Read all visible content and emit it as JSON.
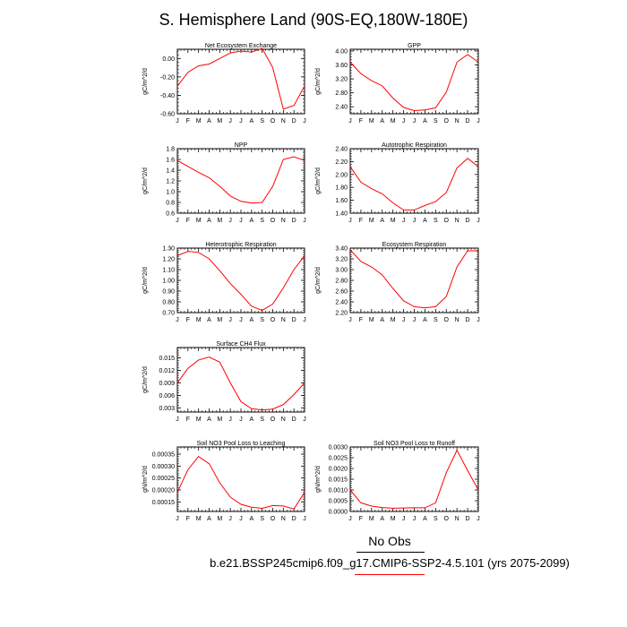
{
  "title": "S. Hemisphere Land (90S-EQ,180W-180E)",
  "legend": {
    "label": "No Obs",
    "case": "b.e21.BSSP245cmip6.f09_g17.CMIP6-SSP2-4.5.101 (yrs 2075-2099)",
    "line_color": "#ff0000"
  },
  "chart_data": [
    {
      "type": "line",
      "title": "Net Ecosystem Exchange",
      "ylabel": "gC/m^2/d",
      "x": [
        "J",
        "F",
        "M",
        "A",
        "M",
        "J",
        "J",
        "A",
        "S",
        "O",
        "N",
        "D",
        "J"
      ],
      "series": [
        {
          "values": [
            -0.3,
            -0.15,
            -0.08,
            -0.06,
            0.0,
            0.06,
            0.08,
            0.07,
            0.11,
            -0.1,
            -0.55,
            -0.51,
            -0.3
          ]
        }
      ],
      "ylim": [
        -0.6,
        0.1
      ],
      "yticks": [
        0.0,
        -0.2,
        -0.4,
        -0.6
      ],
      "ytick_labels": [
        "0.00",
        "-0.20",
        "-0.40",
        "-0.60"
      ],
      "color": "#ff0000"
    },
    {
      "type": "line",
      "title": "GPP",
      "ylabel": "gC/m^2/d",
      "x": [
        "J",
        "F",
        "M",
        "A",
        "M",
        "J",
        "J",
        "A",
        "S",
        "O",
        "N",
        "D",
        "J"
      ],
      "series": [
        {
          "values": [
            3.68,
            3.35,
            3.15,
            3.0,
            2.65,
            2.38,
            2.29,
            2.31,
            2.37,
            2.82,
            3.68,
            3.9,
            3.68
          ]
        }
      ],
      "ylim": [
        2.2,
        4.05
      ],
      "yticks": [
        2.4,
        2.8,
        3.2,
        3.6,
        4.0
      ],
      "ytick_labels": [
        "2.40",
        "2.80",
        "3.20",
        "3.60",
        "4.00"
      ],
      "color": "#ff0000"
    },
    {
      "type": "line",
      "title": "NPP",
      "ylabel": "gC/m^2/d",
      "x": [
        "J",
        "F",
        "M",
        "A",
        "M",
        "J",
        "J",
        "A",
        "S",
        "O",
        "N",
        "D",
        "J"
      ],
      "series": [
        {
          "values": [
            1.58,
            1.47,
            1.36,
            1.26,
            1.1,
            0.92,
            0.82,
            0.79,
            0.8,
            1.1,
            1.6,
            1.65,
            1.58
          ]
        }
      ],
      "ylim": [
        0.6,
        1.8
      ],
      "yticks": [
        0.6,
        0.8,
        1.0,
        1.2,
        1.4,
        1.6,
        1.8
      ],
      "ytick_labels": [
        "0.6",
        "0.8",
        "1.0",
        "1.2",
        "1.4",
        "1.6",
        "1.8"
      ],
      "color": "#ff0000"
    },
    {
      "type": "line",
      "title": "Autotrophic Respiration",
      "ylabel": "gC/m^2/d",
      "x": [
        "J",
        "F",
        "M",
        "A",
        "M",
        "J",
        "J",
        "A",
        "S",
        "O",
        "N",
        "D",
        "J"
      ],
      "series": [
        {
          "values": [
            2.12,
            1.88,
            1.78,
            1.7,
            1.56,
            1.45,
            1.45,
            1.52,
            1.58,
            1.72,
            2.1,
            2.25,
            2.12
          ]
        }
      ],
      "ylim": [
        1.4,
        2.4
      ],
      "yticks": [
        1.4,
        1.6,
        1.8,
        2.0,
        2.2,
        2.4
      ],
      "ytick_labels": [
        "1.40",
        "1.60",
        "1.80",
        "2.00",
        "2.20",
        "2.40"
      ],
      "color": "#ff0000"
    },
    {
      "type": "line",
      "title": "Heterotrophic Respiration",
      "ylabel": "gC/m^2/d",
      "x": [
        "J",
        "F",
        "M",
        "A",
        "M",
        "J",
        "J",
        "A",
        "S",
        "O",
        "N",
        "D",
        "J"
      ],
      "series": [
        {
          "values": [
            1.23,
            1.27,
            1.26,
            1.2,
            1.09,
            0.97,
            0.87,
            0.76,
            0.72,
            0.78,
            0.93,
            1.1,
            1.23
          ]
        }
      ],
      "ylim": [
        0.7,
        1.3
      ],
      "yticks": [
        0.7,
        0.8,
        0.9,
        1.0,
        1.1,
        1.2,
        1.3
      ],
      "ytick_labels": [
        "0.70",
        "0.80",
        "0.90",
        "1.00",
        "1.10",
        "1.20",
        "1.30"
      ],
      "color": "#ff0000"
    },
    {
      "type": "line",
      "title": "Ecosystem Respiration",
      "ylabel": "gC/m^2/d",
      "x": [
        "J",
        "F",
        "M",
        "A",
        "M",
        "J",
        "J",
        "A",
        "S",
        "O",
        "N",
        "D",
        "J"
      ],
      "series": [
        {
          "values": [
            3.37,
            3.15,
            3.05,
            2.9,
            2.65,
            2.42,
            2.31,
            2.29,
            2.31,
            2.5,
            3.05,
            3.35,
            3.35
          ]
        }
      ],
      "ylim": [
        2.2,
        3.4
      ],
      "yticks": [
        2.2,
        2.4,
        2.6,
        2.8,
        3.0,
        3.2,
        3.4
      ],
      "ytick_labels": [
        "2.20",
        "2.40",
        "2.60",
        "2.80",
        "3.00",
        "3.20",
        "3.40"
      ],
      "color": "#ff0000"
    },
    {
      "type": "line",
      "title": "Surface CH4 Flux",
      "ylabel": "gC/m^2/d",
      "x": [
        "J",
        "F",
        "M",
        "A",
        "M",
        "J",
        "J",
        "A",
        "S",
        "O",
        "N",
        "D",
        "J"
      ],
      "series": [
        {
          "values": [
            0.009,
            0.0125,
            0.0145,
            0.0152,
            0.014,
            0.009,
            0.0045,
            0.0028,
            0.0025,
            0.0027,
            0.0038,
            0.0062,
            0.009
          ]
        }
      ],
      "ylim": [
        0.002,
        0.0175
      ],
      "yticks": [
        0.003,
        0.006,
        0.009,
        0.012,
        0.015
      ],
      "ytick_labels": [
        "0.003",
        "0.006",
        "0.009",
        "0.012",
        "0.015"
      ],
      "color": "#ff0000"
    },
    {
      "type": "line",
      "title": "Soil NO3 Pool Loss to Leaching",
      "ylabel": "gN/m^2/d",
      "x": [
        "J",
        "F",
        "M",
        "A",
        "M",
        "J",
        "J",
        "A",
        "S",
        "O",
        "N",
        "D",
        "J"
      ],
      "series": [
        {
          "values": [
            0.00019,
            0.000285,
            0.00034,
            0.00031,
            0.00023,
            0.00017,
            0.00014,
            0.000128,
            0.000123,
            0.000135,
            0.000133,
            0.00012,
            0.00019
          ]
        }
      ],
      "ylim": [
        0.00011,
        0.00038
      ],
      "yticks": [
        0.00015,
        0.0002,
        0.00025,
        0.0003,
        0.00035
      ],
      "ytick_labels": [
        "0.00015",
        "0.00020",
        "0.00025",
        "0.00030",
        "0.00035"
      ],
      "color": "#ff0000"
    },
    {
      "type": "line",
      "title": "Soil NO3 Pool Loss to Runoff",
      "ylabel": "gN/m^2/d",
      "x": [
        "J",
        "F",
        "M",
        "A",
        "M",
        "J",
        "J",
        "A",
        "S",
        "O",
        "N",
        "D",
        "J"
      ],
      "series": [
        {
          "values": [
            0.001,
            0.0004,
            0.00025,
            0.00018,
            0.00015,
            0.00016,
            0.00017,
            0.00017,
            0.0004,
            0.0018,
            0.00285,
            0.0019,
            0.001
          ]
        }
      ],
      "ylim": [
        0.0,
        0.003
      ],
      "yticks": [
        0.0,
        0.0005,
        0.001,
        0.0015,
        0.002,
        0.0025,
        0.003
      ],
      "ytick_labels": [
        "0.0000",
        "0.0005",
        "0.0010",
        "0.0015",
        "0.0020",
        "0.0025",
        "0.0030"
      ],
      "color": "#ff0000"
    }
  ]
}
